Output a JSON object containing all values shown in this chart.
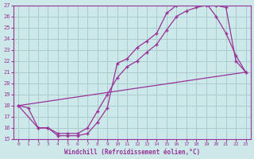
{
  "xlabel": "Windchill (Refroidissement éolien,°C)",
  "bg_color": "#cce8e8",
  "line_color": "#993399",
  "grid_color": "#aacccc",
  "xlim": [
    -0.5,
    23.5
  ],
  "ylim": [
    15,
    27
  ],
  "xticks": [
    0,
    1,
    2,
    3,
    4,
    5,
    6,
    7,
    8,
    9,
    10,
    11,
    12,
    13,
    14,
    15,
    16,
    17,
    18,
    19,
    20,
    21,
    22,
    23
  ],
  "yticks": [
    15,
    16,
    17,
    18,
    19,
    20,
    21,
    22,
    23,
    24,
    25,
    26,
    27
  ],
  "line1_x": [
    0,
    1,
    2,
    3,
    4,
    5,
    6,
    7,
    8,
    9,
    10,
    11,
    12,
    13,
    14,
    15,
    16,
    17,
    18,
    19,
    20,
    21,
    22,
    23
  ],
  "line1_y": [
    18.0,
    17.8,
    16.0,
    16.0,
    15.5,
    15.5,
    15.5,
    16.0,
    17.5,
    19.0,
    20.5,
    21.5,
    22.0,
    22.8,
    23.5,
    24.8,
    26.0,
    26.5,
    26.8,
    27.0,
    27.0,
    26.8,
    22.0,
    21.0
  ],
  "line2_x": [
    0,
    2,
    3,
    4,
    5,
    6,
    7,
    8,
    9,
    10,
    11,
    12,
    13,
    14,
    15,
    16,
    17,
    18,
    19,
    20,
    21,
    22,
    23
  ],
  "line2_y": [
    18.0,
    16.0,
    16.0,
    15.3,
    15.3,
    15.3,
    15.5,
    16.5,
    17.8,
    21.8,
    22.2,
    23.2,
    23.8,
    24.5,
    26.3,
    27.0,
    27.2,
    27.2,
    27.2,
    26.0,
    24.5,
    22.5,
    21.0
  ],
  "line3_x": [
    0,
    23
  ],
  "line3_y": [
    18.0,
    21.0
  ]
}
